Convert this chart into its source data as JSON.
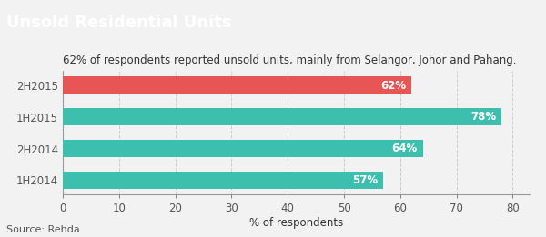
{
  "title": "Unsold Residential Units",
  "subtitle": "62% of respondents reported unsold units, mainly from Selangor, Johor and Pahang.",
  "categories": [
    "1H2014",
    "2H2014",
    "1H2015",
    "2H2015"
  ],
  "values": [
    57,
    64,
    78,
    62
  ],
  "bar_colors": [
    "#3dbfad",
    "#3dbfad",
    "#3dbfad",
    "#e85555"
  ],
  "label_colors": [
    "#ffffff",
    "#ffffff",
    "#ffffff",
    "#ffffff"
  ],
  "xlabel": "% of respondents",
  "source": "Source: Rehda",
  "xlim": [
    0,
    83
  ],
  "xticks": [
    0,
    10,
    20,
    30,
    40,
    50,
    60,
    70,
    80
  ],
  "title_bg_color": "#aaaaaa",
  "title_text_color": "#ffffff",
  "title_fontsize": 13,
  "subtitle_fontsize": 8.5,
  "bar_label_fontsize": 8.5,
  "axis_fontsize": 8.5,
  "source_fontsize": 8,
  "background_color": "#f2f2f2",
  "grid_color": "#cccccc",
  "dashed_line_x": 60,
  "bar_height": 0.55
}
